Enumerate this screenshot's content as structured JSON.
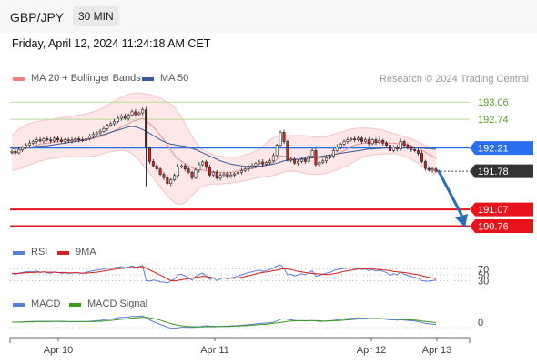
{
  "header": {
    "symbol": "GBP/JPY",
    "timeframe": "30 MIN"
  },
  "datetime": "Friday, April 12, 2024 11:24:18 AM CET",
  "credit": "Research © 2024 Trading Central",
  "colors": {
    "bollinger": "#f08080",
    "ma50": "#3a5a99",
    "pivot": "#2a6ef0",
    "resistance": "#86b846",
    "support": "#e8141b",
    "last": "#333333",
    "rsi": "#5b7fd6",
    "rsi_ma": "#d91c1c",
    "macd": "#5b7fd6",
    "macd_signal": "#3e9a1d",
    "arrow": "#2a6cb8"
  },
  "chart_data": [
    {
      "type": "line",
      "subtype": "candlestick",
      "legend": [
        "MA 20 + Bollinger Bands",
        "MA 50"
      ],
      "x_ticks": [
        "Apr 10",
        "Apr 11",
        "Apr 12",
        "Apr 13"
      ],
      "ylim": [
        190.6,
        193.3
      ],
      "levels": [
        {
          "value": 193.06,
          "label": "193.06",
          "kind": "resistance"
        },
        {
          "value": 192.74,
          "label": "192.74",
          "kind": "resistance"
        },
        {
          "value": 192.21,
          "label": "192.21",
          "kind": "pivot"
        },
        {
          "value": 191.78,
          "label": "191.78",
          "kind": "last"
        },
        {
          "value": 191.07,
          "label": "191.07",
          "kind": "support"
        },
        {
          "value": 190.76,
          "label": "190.76",
          "kind": "support"
        }
      ],
      "close": [
        192.15,
        192.12,
        192.18,
        192.22,
        192.26,
        192.3,
        192.33,
        192.36,
        192.34,
        192.38,
        192.36,
        192.34,
        192.39,
        192.36,
        192.33,
        192.36,
        192.34,
        192.36,
        192.38,
        192.36,
        192.35,
        192.38,
        192.43,
        192.46,
        192.49,
        192.52,
        192.57,
        192.63,
        192.66,
        192.7,
        192.76,
        192.8,
        192.76,
        192.82,
        192.88,
        192.83,
        192.86,
        192.92,
        192.21,
        191.96,
        191.88,
        191.82,
        191.72,
        191.66,
        191.55,
        191.62,
        191.7,
        191.86,
        191.88,
        191.82,
        191.76,
        191.66,
        191.8,
        191.9,
        191.95,
        191.85,
        191.71,
        191.76,
        191.65,
        191.7,
        191.73,
        191.68,
        191.71,
        191.73,
        191.76,
        191.79,
        191.82,
        191.85,
        191.88,
        191.92,
        191.95,
        191.91,
        191.94,
        191.97,
        192.07,
        192.26,
        192.5,
        192.33,
        191.99,
        192.0,
        191.93,
        191.96,
        192.0,
        191.96,
        192.06,
        192.16,
        191.9,
        191.94,
        191.97,
        192.03,
        192.06,
        192.16,
        192.23,
        192.28,
        192.33,
        192.36,
        192.38,
        192.36,
        192.39,
        192.33,
        192.36,
        192.29,
        192.36,
        192.31,
        192.35,
        192.3,
        192.26,
        192.16,
        192.23,
        192.19,
        192.33,
        192.26,
        192.21,
        192.18,
        192.16,
        192.11,
        191.96,
        191.83,
        191.8,
        191.82,
        191.78
      ],
      "ma20": [
        192.1,
        192.12,
        192.15,
        192.18,
        192.2,
        192.22,
        192.24,
        192.26,
        192.28,
        192.29,
        192.3,
        192.31,
        192.32,
        192.33,
        192.34,
        192.34,
        192.35,
        192.35,
        192.35,
        192.35,
        192.36,
        192.36,
        192.37,
        192.38,
        192.4,
        192.42,
        192.44,
        192.47,
        192.5,
        192.53,
        192.56,
        192.6,
        192.63,
        192.66,
        192.7,
        192.72,
        192.74,
        192.76,
        192.72,
        192.66,
        192.6,
        192.53,
        192.45,
        192.36,
        192.27,
        192.17,
        192.08,
        192.01,
        191.96,
        191.92,
        191.88,
        191.84,
        191.82,
        191.81,
        191.8,
        191.79,
        191.78,
        191.77,
        191.76,
        191.76,
        191.76,
        191.75,
        191.76,
        191.77,
        191.79,
        191.8,
        191.81,
        191.82,
        191.83,
        191.85,
        191.86,
        191.87,
        191.89,
        191.91,
        191.94,
        192.0,
        192.06,
        192.06,
        192.04,
        192.02,
        192.0,
        191.99,
        191.99,
        192.0,
        192.01,
        192.03,
        192.02,
        192.02,
        192.03,
        192.04,
        192.06,
        192.08,
        192.1,
        192.13,
        192.16,
        192.2,
        192.24,
        192.26,
        192.28,
        192.29,
        192.3,
        192.3,
        192.31,
        192.31,
        192.32,
        192.32,
        192.31,
        192.3,
        192.3,
        192.29,
        192.29,
        192.28,
        192.27,
        192.25,
        192.23,
        192.21,
        192.17,
        192.13,
        192.09,
        192.06,
        192.02
      ],
      "ma50": [
        192.2,
        192.2,
        192.21,
        192.21,
        192.22,
        192.22,
        192.23,
        192.24,
        192.24,
        192.25,
        192.25,
        192.26,
        192.27,
        192.28,
        192.29,
        192.3,
        192.31,
        192.32,
        192.33,
        192.34,
        192.35,
        192.37,
        192.38,
        192.4,
        192.42,
        192.44,
        192.46,
        192.48,
        192.5,
        192.52,
        192.54,
        192.56,
        192.58,
        192.6,
        192.61,
        192.6,
        192.58,
        192.55,
        192.52,
        192.48,
        192.44,
        192.4,
        192.36,
        192.33,
        192.3,
        192.28,
        192.27,
        192.26,
        192.25,
        192.24,
        192.22,
        192.2,
        192.18,
        192.15,
        192.12,
        192.09,
        192.06,
        192.03,
        192.0,
        191.97,
        191.95,
        191.93,
        191.91,
        191.9,
        191.89,
        191.88,
        191.87,
        191.87,
        191.87,
        191.87,
        191.87,
        191.88,
        191.89,
        191.9,
        191.91,
        191.93,
        191.95,
        191.97,
        191.98,
        191.99,
        192.0,
        192.0,
        192.01,
        192.02,
        192.02,
        192.03,
        192.04,
        192.05,
        192.06,
        192.07,
        192.08,
        192.09,
        192.1,
        192.11,
        192.12,
        192.13,
        192.14,
        192.15,
        192.16,
        192.17,
        192.18,
        192.19,
        192.19,
        192.2,
        192.2,
        192.21,
        192.21,
        192.21,
        192.22,
        192.22,
        192.22,
        192.22,
        192.22,
        192.22,
        192.22,
        192.21,
        192.21,
        192.2,
        192.2,
        192.19,
        192.19
      ],
      "bb_upper": [
        192.44,
        192.5,
        192.56,
        192.6,
        192.64,
        192.66,
        192.68,
        192.7,
        192.71,
        192.72,
        192.73,
        192.74,
        192.75,
        192.76,
        192.77,
        192.78,
        192.79,
        192.8,
        192.81,
        192.82,
        192.83,
        192.84,
        192.86,
        192.88,
        192.9,
        192.93,
        192.96,
        193.0,
        193.04,
        193.08,
        193.12,
        193.15,
        193.18,
        193.2,
        193.22,
        193.23,
        193.23,
        193.22,
        193.21,
        193.2,
        193.18,
        193.16,
        193.13,
        193.1,
        193.06,
        193.02,
        192.96,
        192.88,
        192.78,
        192.66,
        192.54,
        192.42,
        192.32,
        192.24,
        192.18,
        192.14,
        192.11,
        192.09,
        192.07,
        192.06,
        192.05,
        192.04,
        192.04,
        192.04,
        192.05,
        192.06,
        192.08,
        192.1,
        192.12,
        192.15,
        192.19,
        192.24,
        192.3,
        192.36,
        192.4,
        192.42,
        192.43,
        192.44,
        192.44,
        192.44,
        192.44,
        192.44,
        192.44,
        192.44,
        192.43,
        192.42,
        192.41,
        192.41,
        192.41,
        192.42,
        192.44,
        192.46,
        192.48,
        192.5,
        192.52,
        192.54,
        192.56,
        192.57,
        192.58,
        192.58,
        192.58,
        192.58,
        192.57,
        192.56,
        192.55,
        192.54,
        192.52,
        192.5,
        192.48,
        192.46,
        192.44,
        192.42,
        192.4,
        192.38,
        192.35,
        192.32,
        192.29,
        192.26,
        192.24,
        192.22,
        192.2
      ],
      "bb_lower": [
        191.8,
        191.8,
        191.82,
        191.84,
        191.87,
        191.9,
        191.92,
        191.95,
        191.97,
        191.98,
        192.0,
        192.01,
        192.02,
        192.03,
        192.04,
        192.05,
        192.05,
        192.05,
        192.05,
        192.05,
        192.05,
        192.05,
        192.05,
        192.06,
        192.07,
        192.09,
        192.11,
        192.13,
        192.14,
        192.15,
        192.16,
        192.17,
        192.16,
        192.14,
        192.1,
        192.05,
        191.98,
        191.9,
        191.82,
        191.74,
        191.66,
        191.57,
        191.48,
        191.4,
        191.32,
        191.25,
        191.2,
        191.17,
        191.17,
        191.2,
        191.26,
        191.33,
        191.4,
        191.46,
        191.5,
        191.52,
        191.53,
        191.54,
        191.54,
        191.54,
        191.55,
        191.55,
        191.56,
        191.57,
        191.58,
        191.59,
        191.6,
        191.62,
        191.63,
        191.65,
        191.66,
        191.67,
        191.68,
        191.69,
        191.7,
        191.72,
        191.74,
        191.76,
        191.78,
        191.78,
        191.78,
        191.77,
        191.75,
        191.74,
        191.73,
        191.72,
        191.72,
        191.72,
        191.73,
        191.74,
        191.76,
        191.78,
        191.8,
        191.83,
        191.86,
        191.89,
        191.93,
        191.96,
        192.0,
        192.03,
        192.05,
        192.07,
        192.08,
        192.09,
        192.09,
        192.1,
        192.1,
        192.1,
        192.1,
        192.1,
        192.08,
        192.06,
        192.03,
        192.0,
        191.96,
        191.92,
        191.88,
        191.84,
        191.8,
        191.76,
        191.72
      ]
    },
    {
      "type": "line",
      "legend": [
        "RSI",
        "9MA"
      ],
      "y_ticks": [
        70,
        50,
        30
      ],
      "ylim": [
        0,
        100
      ],
      "rsi": [
        55,
        52,
        56,
        58,
        60,
        62,
        60,
        63,
        58,
        60,
        57,
        55,
        60,
        58,
        55,
        57,
        55,
        56,
        58,
        56,
        55,
        58,
        62,
        64,
        66,
        68,
        70,
        73,
        72,
        74,
        76,
        78,
        74,
        77,
        80,
        76,
        78,
        82,
        30,
        28,
        32,
        30,
        26,
        25,
        22,
        30,
        35,
        50,
        52,
        46,
        40,
        32,
        44,
        52,
        56,
        46,
        34,
        40,
        30,
        36,
        40,
        36,
        40,
        42,
        46,
        50,
        54,
        58,
        60,
        64,
        66,
        62,
        65,
        68,
        74,
        80,
        84,
        72,
        50,
        52,
        46,
        50,
        54,
        50,
        58,
        64,
        45,
        48,
        52,
        56,
        58,
        64,
        68,
        70,
        72,
        73,
        74,
        72,
        73,
        68,
        70,
        64,
        68,
        63,
        66,
        62,
        58,
        48,
        54,
        50,
        60,
        52,
        48,
        44,
        42,
        38,
        30,
        28,
        28,
        30,
        32
      ],
      "ma9": [
        55,
        55,
        55,
        56,
        57,
        58,
        58,
        59,
        59,
        60,
        59,
        59,
        59,
        58,
        58,
        58,
        57,
        57,
        57,
        57,
        56,
        56,
        57,
        58,
        59,
        61,
        63,
        65,
        67,
        69,
        71,
        72,
        73,
        74,
        75,
        76,
        77,
        78,
        73,
        67,
        61,
        55,
        49,
        43,
        36,
        30,
        29,
        31,
        33,
        35,
        37,
        39,
        41,
        43,
        45,
        44,
        42,
        40,
        39,
        39,
        39,
        38,
        38,
        38,
        40,
        42,
        44,
        47,
        50,
        53,
        56,
        58,
        60,
        62,
        64,
        66,
        69,
        71,
        70,
        68,
        65,
        62,
        60,
        58,
        56,
        55,
        54,
        53,
        52,
        51,
        52,
        54,
        56,
        59,
        62,
        64,
        66,
        68,
        70,
        71,
        71,
        70,
        70,
        69,
        68,
        67,
        66,
        64,
        62,
        60,
        59,
        58,
        56,
        54,
        52,
        50,
        47,
        44,
        41,
        39,
        37
      ]
    },
    {
      "type": "line",
      "legend": [
        "MACD",
        "MACD Signal"
      ],
      "y_ticks": [
        0
      ],
      "ylim": [
        -0.45,
        0.45
      ],
      "macd": [
        0.0,
        0.0,
        0.01,
        0.01,
        0.02,
        0.02,
        0.03,
        0.03,
        0.03,
        0.03,
        0.03,
        0.03,
        0.03,
        0.03,
        0.02,
        0.02,
        0.02,
        0.02,
        0.02,
        0.02,
        0.02,
        0.02,
        0.03,
        0.04,
        0.05,
        0.06,
        0.08,
        0.1,
        0.11,
        0.13,
        0.15,
        0.17,
        0.17,
        0.18,
        0.2,
        0.2,
        0.21,
        0.22,
        0.15,
        0.08,
        0.02,
        -0.03,
        -0.08,
        -0.13,
        -0.18,
        -0.21,
        -0.22,
        -0.2,
        -0.18,
        -0.18,
        -0.18,
        -0.19,
        -0.18,
        -0.16,
        -0.14,
        -0.13,
        -0.14,
        -0.14,
        -0.15,
        -0.15,
        -0.14,
        -0.14,
        -0.13,
        -0.13,
        -0.12,
        -0.11,
        -0.1,
        -0.09,
        -0.08,
        -0.06,
        -0.05,
        -0.04,
        -0.03,
        -0.02,
        0.0,
        0.04,
        0.1,
        0.12,
        0.1,
        0.08,
        0.06,
        0.05,
        0.05,
        0.04,
        0.05,
        0.06,
        0.04,
        0.03,
        0.03,
        0.04,
        0.05,
        0.06,
        0.08,
        0.1,
        0.12,
        0.13,
        0.14,
        0.14,
        0.15,
        0.14,
        0.14,
        0.13,
        0.13,
        0.12,
        0.12,
        0.11,
        0.1,
        0.08,
        0.08,
        0.07,
        0.08,
        0.07,
        0.06,
        0.05,
        0.04,
        0.02,
        -0.01,
        -0.04,
        -0.06,
        -0.07,
        -0.08
      ],
      "signal": [
        0.0,
        0.0,
        0.0,
        0.0,
        0.01,
        0.01,
        0.01,
        0.02,
        0.02,
        0.02,
        0.02,
        0.02,
        0.03,
        0.03,
        0.03,
        0.03,
        0.02,
        0.02,
        0.02,
        0.02,
        0.02,
        0.02,
        0.02,
        0.02,
        0.03,
        0.03,
        0.04,
        0.05,
        0.06,
        0.07,
        0.09,
        0.1,
        0.11,
        0.13,
        0.14,
        0.15,
        0.16,
        0.17,
        0.17,
        0.15,
        0.13,
        0.1,
        0.07,
        0.03,
        -0.01,
        -0.05,
        -0.08,
        -0.11,
        -0.13,
        -0.14,
        -0.15,
        -0.16,
        -0.16,
        -0.17,
        -0.17,
        -0.16,
        -0.16,
        -0.16,
        -0.16,
        -0.15,
        -0.15,
        -0.15,
        -0.15,
        -0.14,
        -0.14,
        -0.13,
        -0.13,
        -0.12,
        -0.11,
        -0.1,
        -0.09,
        -0.08,
        -0.07,
        -0.06,
        -0.04,
        -0.03,
        -0.01,
        0.01,
        0.03,
        0.04,
        0.04,
        0.05,
        0.05,
        0.05,
        0.05,
        0.05,
        0.05,
        0.05,
        0.04,
        0.04,
        0.04,
        0.05,
        0.05,
        0.06,
        0.07,
        0.08,
        0.09,
        0.1,
        0.11,
        0.12,
        0.12,
        0.12,
        0.13,
        0.13,
        0.13,
        0.12,
        0.12,
        0.11,
        0.11,
        0.1,
        0.1,
        0.09,
        0.08,
        0.08,
        0.07,
        0.06,
        0.04,
        0.03,
        0.01,
        0.0,
        -0.02
      ]
    }
  ]
}
